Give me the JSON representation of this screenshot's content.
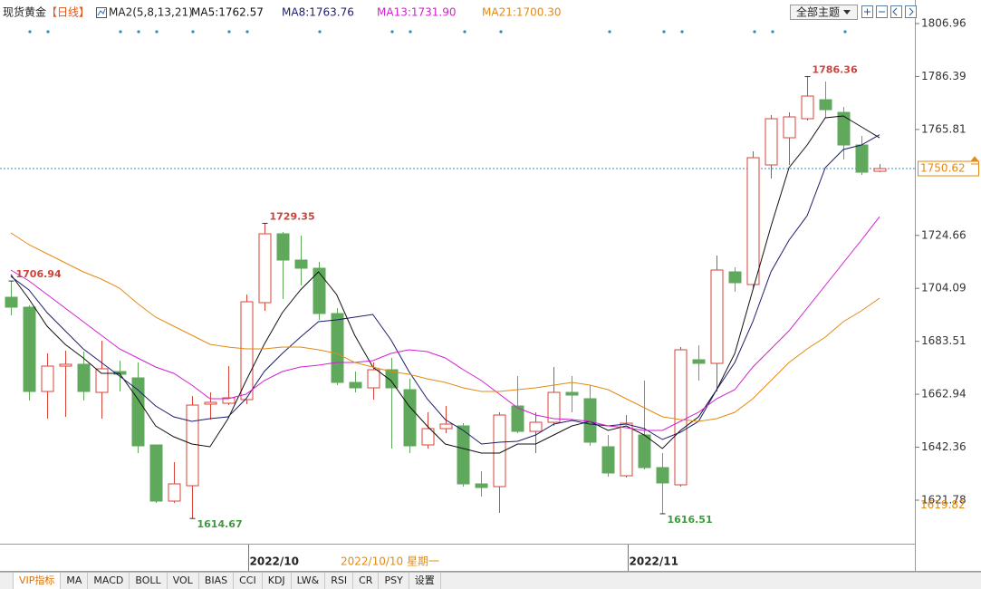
{
  "header": {
    "symbol": "现货黄金",
    "period": "【日线】",
    "indicator": "MA2(5,8,13,21)",
    "theme_button": "全部主题"
  },
  "tabs": [
    "VIP指标",
    "MA",
    "MACD",
    "BOLL",
    "VOL",
    "BIAS",
    "CCI",
    "KDJ",
    "LW&",
    "RSI",
    "CR",
    "PSY",
    "设置"
  ],
  "chart_data": {
    "type": "candlestick",
    "categories": [
      null,
      null,
      null,
      null,
      null,
      null,
      null,
      null,
      null,
      null,
      null,
      null,
      null,
      "2022/10",
      null,
      null,
      null,
      null,
      null,
      null,
      null,
      null,
      null,
      null,
      null,
      null,
      null,
      null,
      null,
      null,
      null,
      null,
      null,
      null,
      "2022/11",
      null,
      null,
      null,
      null,
      null,
      null,
      null,
      null,
      null,
      null,
      null,
      null,
      null,
      null
    ],
    "open": [
      1700.64,
      1696.77,
      1664.02,
      1673.88,
      1674.59,
      1663.67,
      1671.77,
      1669.31,
      1643.25,
      1621.43,
      1627.41,
      1659.1,
      1659.45,
      1660.86,
      1698.53,
      1725.28,
      1715.07,
      1711.9,
      1694.3,
      1667.54,
      1665.43,
      1672.47,
      1664.73,
      1643.25,
      1649.59,
      1650.65,
      1628.12,
      1627.06,
      1658.39,
      1648.53,
      1652.05,
      1663.67,
      1661.21,
      1642.55,
      1631.28,
      1647.13,
      1634.45,
      1627.76,
      1676.35,
      1674.94,
      1710.49,
      1705.57,
      1752.04,
      1762.6,
      1769.99,
      1777.38,
      1772.46,
      1759.78,
      1749.57
    ],
    "high": [
      1706.94,
      1697.5,
      1678.81,
      1679.87,
      1679.51,
      1683.74,
      1675.99,
      1675.29,
      1643.25,
      1636.56,
      1662.26,
      1663.67,
      1673.88,
      1701.69,
      1729.35,
      1725.99,
      1724.58,
      1714.37,
      1696.41,
      1671.77,
      1675.29,
      1677.05,
      1668.95,
      1655.93,
      1658.39,
      1651.7,
      1633.04,
      1655.93,
      1670.01,
      1655.93,
      1673.53,
      1670.01,
      1666.49,
      1647.13,
      1654.87,
      1668.25,
      1640.08,
      1681.27,
      1681.98,
      1716.83,
      1712.26,
      1757.32,
      1771.4,
      1772.46,
      1786.36,
      1784.43,
      1774.57,
      1763.3,
      1752.39
    ],
    "low": [
      1693.6,
      1660.5,
      1653.46,
      1654.17,
      1660.5,
      1653.46,
      1664.02,
      1640.08,
      1620.72,
      1620.72,
      1614.67,
      1653.11,
      1658.74,
      1659.1,
      1695.36,
      1699.93,
      1705.21,
      1691.84,
      1666.49,
      1663.67,
      1660.86,
      1641.85,
      1640.08,
      1641.85,
      1647.83,
      1627.06,
      1623.19,
      1616.85,
      1647.83,
      1640.08,
      1650.65,
      1655.93,
      1642.9,
      1630.93,
      1630.58,
      1633.75,
      1616.51,
      1627.06,
      1668.25,
      1664.02,
      1702.75,
      1704.16,
      1746.76,
      1752.04,
      1769.29,
      1770.34,
      1754.15,
      1748.16,
      1749.22
    ],
    "close": [
      1696.77,
      1664.02,
      1673.88,
      1674.59,
      1664.02,
      1672.83,
      1670.71,
      1642.9,
      1621.43,
      1628.12,
      1658.74,
      1659.8,
      1661.56,
      1698.88,
      1725.28,
      1715.07,
      1711.9,
      1694.3,
      1667.54,
      1665.43,
      1672.47,
      1665.43,
      1642.9,
      1649.59,
      1651.35,
      1628.12,
      1626.71,
      1654.87,
      1648.53,
      1652.05,
      1663.67,
      1662.62,
      1644.31,
      1632.34,
      1651.7,
      1634.45,
      1628.47,
      1680.22,
      1674.94,
      1711.2,
      1706.27,
      1754.85,
      1769.99,
      1770.7,
      1778.79,
      1773.51,
      1759.78,
      1749.22,
      1750.62
    ],
    "up_color": "#d9443a",
    "down_color": "#5fa85c",
    "series": [
      {
        "name": "MA5:1762.57",
        "color": "#111111",
        "values": [
          1709.44,
          1699.93,
          1689.37,
          1682.33,
          1677.05,
          1671.07,
          1671.07,
          1661.21,
          1650.65,
          1646.42,
          1643.61,
          1642.55,
          1653.46,
          1668.25,
          1682.33,
          1694.65,
          1703.45,
          1710.49,
          1701.69,
          1685.85,
          1673.53,
          1668.25,
          1658.39,
          1650.65,
          1643.61,
          1641.85,
          1640.08,
          1640.08,
          1643.61,
          1643.61,
          1647.13,
          1650.65,
          1652.41,
          1648.89,
          1650.65,
          1647.13,
          1641.85,
          1648.89,
          1654.17,
          1664.73,
          1678.81,
          1703.45,
          1728.1,
          1750.98,
          1759.78,
          1770.34,
          1771.05,
          1766.82,
          1762.57
        ]
      },
      {
        "name": "MA8:1763.76",
        "color": "#1c1c6e",
        "values": [
          1708.73,
          1703.45,
          1694.65,
          1687.61,
          1680.57,
          1675.29,
          1670.01,
          1664.73,
          1658.39,
          1654.17,
          1652.41,
          1653.46,
          1654.17,
          1661.21,
          1671.77,
          1678.81,
          1685.15,
          1691.13,
          1691.84,
          1692.89,
          1693.95,
          1684.09,
          1671.77,
          1661.21,
          1653.11,
          1648.89,
          1643.61,
          1644.31,
          1644.66,
          1647.13,
          1651.35,
          1652.76,
          1651.35,
          1650.65,
          1651.35,
          1649.59,
          1645.37,
          1648.18,
          1652.41,
          1664.73,
          1675.29,
          1691.13,
          1710.49,
          1722.82,
          1732.32,
          1750.98,
          1758.02,
          1759.78,
          1763.76
        ]
      },
      {
        "name": "MA13:1731.90",
        "color": "#d21fd2",
        "values": [
          1711.2,
          1706.97,
          1701.69,
          1696.41,
          1691.13,
          1685.85,
          1680.57,
          1677.05,
          1673.53,
          1671.07,
          1666.49,
          1661.21,
          1661.21,
          1662.97,
          1668.25,
          1671.77,
          1673.53,
          1674.23,
          1675.29,
          1675.29,
          1675.99,
          1678.81,
          1680.22,
          1679.51,
          1677.05,
          1672.47,
          1668.25,
          1662.97,
          1657.69,
          1654.87,
          1653.46,
          1653.11,
          1652.41,
          1650.65,
          1649.94,
          1648.89,
          1648.89,
          1652.41,
          1655.93,
          1661.21,
          1664.73,
          1673.53,
          1680.57,
          1687.61,
          1696.41,
          1705.21,
          1714.02,
          1722.82,
          1731.9
        ]
      },
      {
        "name": "MA21:1700.30",
        "color": "#e38a12",
        "values": [
          1725.63,
          1721.06,
          1717.54,
          1714.02,
          1710.49,
          1707.68,
          1704.16,
          1698.17,
          1692.89,
          1689.37,
          1685.85,
          1682.33,
          1681.27,
          1680.57,
          1680.57,
          1681.27,
          1681.27,
          1680.22,
          1678.81,
          1675.29,
          1673.53,
          1671.77,
          1670.71,
          1668.95,
          1667.54,
          1665.43,
          1664.02,
          1664.02,
          1664.73,
          1665.43,
          1666.49,
          1667.54,
          1666.49,
          1664.73,
          1661.21,
          1657.69,
          1654.17,
          1653.11,
          1652.41,
          1653.46,
          1655.93,
          1661.21,
          1668.25,
          1675.29,
          1680.57,
          1685.15,
          1691.13,
          1695.36,
          1700.3
        ]
      }
    ],
    "annotations": [
      1706.94,
      1729.35,
      1786.36,
      1614.67,
      1616.51
    ],
    "last_price": 1750.62,
    "cursor_price": 1619.82,
    "cursor_date": "2022/10/10 星期一",
    "ylim": [
      1604.88,
      1809.78
    ],
    "yticks": [
      1806.96,
      1786.39,
      1765.81,
      1724.66,
      1704.09,
      1683.51,
      1662.94,
      1642.36,
      1621.78
    ]
  }
}
